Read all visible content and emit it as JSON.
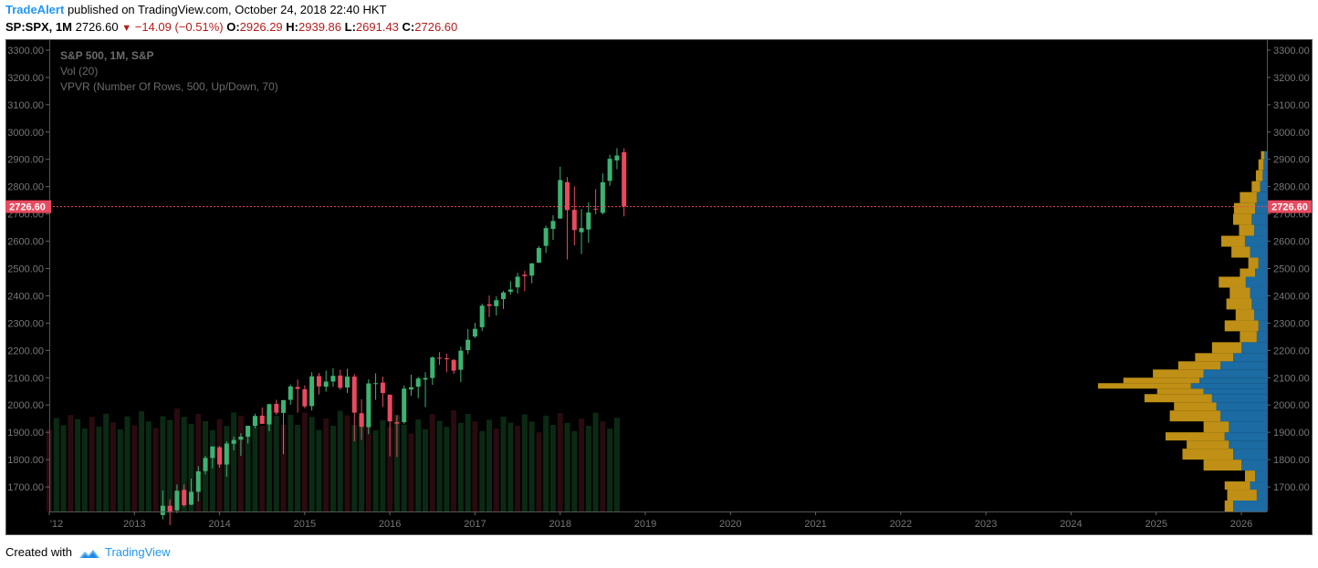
{
  "header": {
    "author": "TradeAlert",
    "published_text": "published on TradingView.com, October 24, 2018 22:40 HKT",
    "symbol": "SP:SPX, 1M",
    "last": "2726.60",
    "change": "−14.09 (−0.51%)",
    "open_label": "O:",
    "open": "2926.29",
    "high_label": "H:",
    "high": "2939.86",
    "low_label": "L:",
    "low": "2691.43",
    "close_label": "C:",
    "close": "2726.60"
  },
  "legend": {
    "title": "S&P 500, 1M, S&P",
    "vol": "Vol (20)",
    "vpvr": "VPVR (Number Of Rows, 500, Up/Down, 70)"
  },
  "price_tag": "2726.60",
  "footer": {
    "created_with": "Created with",
    "brand": "TradingView"
  },
  "colors": {
    "up": "#3cb371",
    "down": "#e84a5f",
    "background": "#000000",
    "vol_up": "#0b2a14",
    "vol_down": "#2a0b0f",
    "vpvr_up": "#1f77b4",
    "vpvr_down": "#d4a017",
    "price_line": "#e84a5f"
  },
  "chart_data": {
    "type": "candlestick",
    "interval": "1M",
    "y_ticks": [
      1700,
      1800,
      1900,
      2000,
      2100,
      2200,
      2300,
      2400,
      2500,
      2600,
      2700,
      2800,
      2900,
      3000,
      3100,
      3200,
      3300
    ],
    "ylim": [
      1610,
      3340
    ],
    "x_ticks": [
      "'12",
      "2013",
      "2014",
      "2015",
      "2016",
      "2017",
      "2018",
      "2019",
      "2020",
      "2021",
      "2022",
      "2023",
      "2024",
      "2025",
      "2026"
    ],
    "xlim": [
      2012.0,
      2026.3
    ],
    "last_price": 2726.6,
    "candles": [
      {
        "t": 2013.333,
        "o": 1597,
        "h": 1687,
        "l": 1581,
        "c": 1631
      },
      {
        "t": 2013.417,
        "o": 1631,
        "h": 1654,
        "l": 1560,
        "c": 1606
      },
      {
        "t": 2013.5,
        "o": 1614,
        "h": 1709,
        "l": 1604,
        "c": 1686
      },
      {
        "t": 2013.583,
        "o": 1689,
        "h": 1709,
        "l": 1627,
        "c": 1633
      },
      {
        "t": 2013.667,
        "o": 1635,
        "h": 1730,
        "l": 1633,
        "c": 1682
      },
      {
        "t": 2013.75,
        "o": 1682,
        "h": 1776,
        "l": 1647,
        "c": 1757
      },
      {
        "t": 2013.833,
        "o": 1758,
        "h": 1813,
        "l": 1746,
        "c": 1806
      },
      {
        "t": 2013.917,
        "o": 1806,
        "h": 1849,
        "l": 1768,
        "c": 1848
      },
      {
        "t": 2014.0,
        "o": 1845,
        "h": 1850,
        "l": 1770,
        "c": 1782
      },
      {
        "t": 2014.083,
        "o": 1782,
        "h": 1867,
        "l": 1737,
        "c": 1859
      },
      {
        "t": 2014.167,
        "o": 1858,
        "h": 1884,
        "l": 1834,
        "c": 1872
      },
      {
        "t": 2014.25,
        "o": 1873,
        "h": 1897,
        "l": 1814,
        "c": 1884
      },
      {
        "t": 2014.333,
        "o": 1884,
        "h": 1924,
        "l": 1859,
        "c": 1924
      },
      {
        "t": 2014.417,
        "o": 1924,
        "h": 1968,
        "l": 1915,
        "c": 1960
      },
      {
        "t": 2014.5,
        "o": 1961,
        "h": 1991,
        "l": 1930,
        "c": 1931
      },
      {
        "t": 2014.583,
        "o": 1929,
        "h": 2005,
        "l": 1904,
        "c": 2003
      },
      {
        "t": 2014.667,
        "o": 2004,
        "h": 2019,
        "l": 1964,
        "c": 1972
      },
      {
        "t": 2014.75,
        "o": 1971,
        "h": 2018,
        "l": 1820,
        "c": 2018
      },
      {
        "t": 2014.833,
        "o": 2019,
        "h": 2075,
        "l": 2001,
        "c": 2068
      },
      {
        "t": 2014.917,
        "o": 2066,
        "h": 2093,
        "l": 1972,
        "c": 2059
      },
      {
        "t": 2015.0,
        "o": 2058,
        "h": 2072,
        "l": 1988,
        "c": 1995
      },
      {
        "t": 2015.083,
        "o": 1996,
        "h": 2120,
        "l": 1980,
        "c": 2105
      },
      {
        "t": 2015.167,
        "o": 2106,
        "h": 2117,
        "l": 2039,
        "c": 2068
      },
      {
        "t": 2015.25,
        "o": 2067,
        "h": 2126,
        "l": 2049,
        "c": 2086
      },
      {
        "t": 2015.333,
        "o": 2086,
        "h": 2135,
        "l": 2067,
        "c": 2107
      },
      {
        "t": 2015.417,
        "o": 2108,
        "h": 2129,
        "l": 2056,
        "c": 2063
      },
      {
        "t": 2015.5,
        "o": 2064,
        "h": 2133,
        "l": 2044,
        "c": 2104
      },
      {
        "t": 2015.583,
        "o": 2104,
        "h": 2113,
        "l": 1867,
        "c": 1972
      },
      {
        "t": 2015.667,
        "o": 1970,
        "h": 2021,
        "l": 1872,
        "c": 1920
      },
      {
        "t": 2015.75,
        "o": 1919,
        "h": 2094,
        "l": 1893,
        "c": 2079
      },
      {
        "t": 2015.833,
        "o": 2080,
        "h": 2116,
        "l": 2019,
        "c": 2080
      },
      {
        "t": 2015.917,
        "o": 2082,
        "h": 2104,
        "l": 1993,
        "c": 2044
      },
      {
        "t": 2016.0,
        "o": 2038,
        "h": 2038,
        "l": 1812,
        "c": 1940
      },
      {
        "t": 2016.083,
        "o": 1937,
        "h": 1963,
        "l": 1810,
        "c": 1932
      },
      {
        "t": 2016.167,
        "o": 1937,
        "h": 2072,
        "l": 1931,
        "c": 2060
      },
      {
        "t": 2016.25,
        "o": 2057,
        "h": 2111,
        "l": 2034,
        "c": 2065
      },
      {
        "t": 2016.333,
        "o": 2067,
        "h": 2103,
        "l": 2025,
        "c": 2097
      },
      {
        "t": 2016.417,
        "o": 2093,
        "h": 2120,
        "l": 1992,
        "c": 2099
      },
      {
        "t": 2016.5,
        "o": 2099,
        "h": 2178,
        "l": 2074,
        "c": 2174
      },
      {
        "t": 2016.583,
        "o": 2173,
        "h": 2194,
        "l": 2147,
        "c": 2171
      },
      {
        "t": 2016.667,
        "o": 2171,
        "h": 2188,
        "l": 2120,
        "c": 2168
      },
      {
        "t": 2016.75,
        "o": 2165,
        "h": 2169,
        "l": 2114,
        "c": 2126
      },
      {
        "t": 2016.833,
        "o": 2129,
        "h": 2214,
        "l": 2084,
        "c": 2199
      },
      {
        "t": 2016.917,
        "o": 2201,
        "h": 2278,
        "l": 2187,
        "c": 2239
      },
      {
        "t": 2017.0,
        "o": 2251,
        "h": 2301,
        "l": 2245,
        "c": 2279
      },
      {
        "t": 2017.083,
        "o": 2285,
        "h": 2371,
        "l": 2271,
        "c": 2364
      },
      {
        "t": 2017.167,
        "o": 2369,
        "h": 2401,
        "l": 2322,
        "c": 2363
      },
      {
        "t": 2017.25,
        "o": 2362,
        "h": 2398,
        "l": 2328,
        "c": 2384
      },
      {
        "t": 2017.333,
        "o": 2388,
        "h": 2418,
        "l": 2352,
        "c": 2412
      },
      {
        "t": 2017.417,
        "o": 2415,
        "h": 2454,
        "l": 2404,
        "c": 2423
      },
      {
        "t": 2017.5,
        "o": 2431,
        "h": 2484,
        "l": 2408,
        "c": 2470
      },
      {
        "t": 2017.583,
        "o": 2477,
        "h": 2491,
        "l": 2417,
        "c": 2472
      },
      {
        "t": 2017.667,
        "o": 2474,
        "h": 2519,
        "l": 2446,
        "c": 2519
      },
      {
        "t": 2017.75,
        "o": 2521,
        "h": 2582,
        "l": 2521,
        "c": 2575
      },
      {
        "t": 2017.833,
        "o": 2583,
        "h": 2657,
        "l": 2557,
        "c": 2648
      },
      {
        "t": 2017.917,
        "o": 2645,
        "h": 2695,
        "l": 2605,
        "c": 2674
      },
      {
        "t": 2018.0,
        "o": 2683,
        "h": 2873,
        "l": 2683,
        "c": 2824
      },
      {
        "t": 2018.083,
        "o": 2816,
        "h": 2835,
        "l": 2533,
        "c": 2714
      },
      {
        "t": 2018.167,
        "o": 2715,
        "h": 2801,
        "l": 2585,
        "c": 2641
      },
      {
        "t": 2018.25,
        "o": 2633,
        "h": 2718,
        "l": 2553,
        "c": 2648
      },
      {
        "t": 2018.333,
        "o": 2643,
        "h": 2742,
        "l": 2594,
        "c": 2705
      },
      {
        "t": 2018.417,
        "o": 2719,
        "h": 2791,
        "l": 2699,
        "c": 2718
      },
      {
        "t": 2018.5,
        "o": 2704,
        "h": 2848,
        "l": 2698,
        "c": 2816
      },
      {
        "t": 2018.583,
        "o": 2821,
        "h": 2917,
        "l": 2803,
        "c": 2902
      },
      {
        "t": 2018.667,
        "o": 2896,
        "h": 2941,
        "l": 2864,
        "c": 2914
      },
      {
        "t": 2018.75,
        "o": 2926,
        "h": 2940,
        "l": 2691,
        "c": 2727
      }
    ]
  }
}
